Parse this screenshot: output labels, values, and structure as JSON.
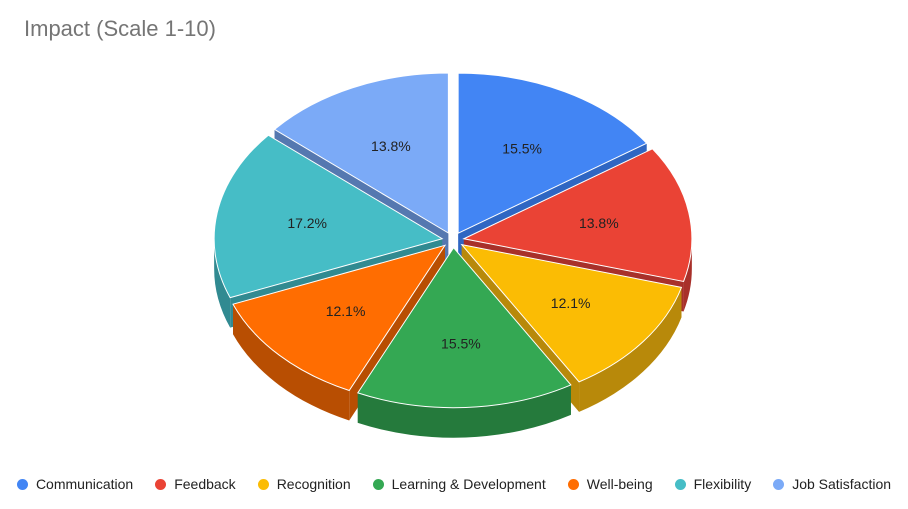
{
  "chart_data": {
    "type": "pie",
    "title": "Impact (Scale 1-10)",
    "style": "3d-exploded",
    "legend_position": "bottom",
    "slices": [
      {
        "label": "Communication",
        "percent": 15.5,
        "value_label": "15.5%",
        "color": "#4285F4",
        "side": "#2F66C2"
      },
      {
        "label": "Feedback",
        "percent": 13.8,
        "value_label": "13.8%",
        "color": "#EA4335",
        "side": "#A8302A"
      },
      {
        "label": "Recognition",
        "percent": 12.1,
        "value_label": "12.1%",
        "color": "#FBBC04",
        "side": "#B8890A"
      },
      {
        "label": "Learning & Development",
        "percent": 15.5,
        "value_label": "15.5%",
        "color": "#34A853",
        "side": "#257A3C"
      },
      {
        "label": "Well-being",
        "percent": 12.1,
        "value_label": "12.1%",
        "color": "#FF6D01",
        "side": "#B84E02"
      },
      {
        "label": "Flexibility",
        "percent": 17.2,
        "value_label": "17.2%",
        "color": "#46BDC6",
        "side": "#318A91"
      },
      {
        "label": "Job Satisfaction",
        "percent": 13.8,
        "value_label": "13.8%",
        "color": "#7BAAF7",
        "side": "#5578B0"
      }
    ]
  }
}
